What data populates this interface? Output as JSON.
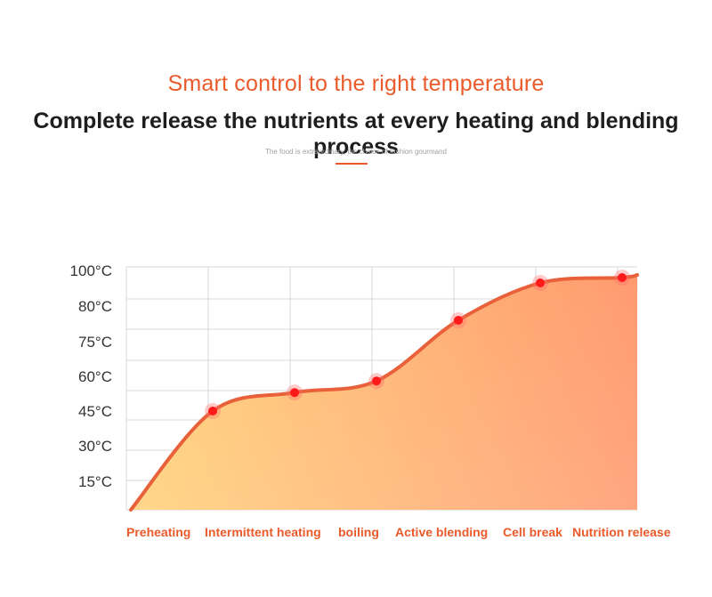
{
  "header": {
    "title": "Smart control to the right temperature",
    "subtitle": "Complete release the nutrients at every heating and blending process",
    "tagline": "The food is extraordinary, the choice of fashion gourmand"
  },
  "colors": {
    "accent": "#ea5a2a",
    "curve": "#e8613a",
    "marker": "#ff1a1a",
    "fill_start": "#ffd27a",
    "fill_end": "#ff9a70",
    "grid": "#d9d9d9"
  },
  "chart_data": {
    "type": "area",
    "categories": [
      "Preheating",
      "Intermittent heating",
      "boiling",
      "Active blending",
      "Cell break",
      "Nutrition release"
    ],
    "y_tick_labels": [
      "100°C",
      "80°C",
      "75°C",
      "60°C",
      "45°C",
      "30°C",
      "15°C"
    ],
    "y_tick_values": [
      100,
      80,
      75,
      60,
      45,
      30,
      15
    ],
    "ylim": [
      0,
      100
    ],
    "grid": true,
    "series": [
      {
        "x": [
          0,
          1,
          2,
          3,
          4,
          5,
          6
        ],
        "y": [
          0,
          45,
          53,
          58,
          78,
          93,
          96
        ],
        "marker_indices": [
          1,
          2,
          3,
          4,
          5,
          6
        ]
      }
    ]
  }
}
